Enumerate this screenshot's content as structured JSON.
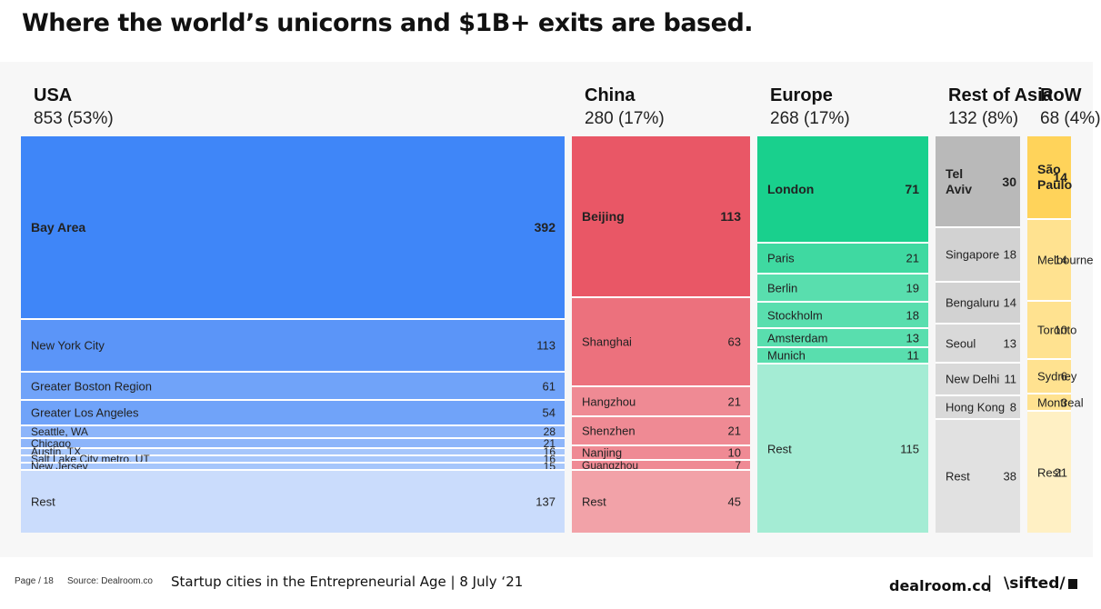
{
  "title": "Where the world’s unicorns and $1B+ exits are based.",
  "footer": {
    "page": "Page / 18",
    "source": "Source: Dealroom.co",
    "subtitle": "Startup cities in the Entrepreneurial Age | 8 July ‘21",
    "brand_left": "dealroom.co",
    "separator": "|",
    "brand_right": "\\sifted/",
    "brand_right_icon": "sifted-square-icon"
  },
  "chart_data": {
    "type": "treemap",
    "title": "Where the world’s unicorns and $1B+ exits are based.",
    "regions": [
      {
        "name": "USA",
        "total": "853 (53%)",
        "value": 853,
        "color": "#3f86f8",
        "cities": [
          {
            "label": "Bay Area",
            "value": 392,
            "color": "#3f86f8"
          },
          {
            "label": "New York City",
            "value": 113,
            "color": "#5b95f8"
          },
          {
            "label": "Greater Boston Region",
            "value": 61,
            "color": "#70a3f9"
          },
          {
            "label": "Greater Los Angeles",
            "value": 54,
            "color": "#70a3f9"
          },
          {
            "label": "Seattle, WA",
            "value": 28,
            "color": "#8db5fa"
          },
          {
            "label": "Chicago",
            "value": 21,
            "color": "#8db5fa"
          },
          {
            "label": "Austin, TX",
            "value": 16,
            "color": "#a6c6fb"
          },
          {
            "label": "Salt Lake City metro, UT",
            "value": 16,
            "color": "#a6c6fb"
          },
          {
            "label": "New Jersey",
            "value": 15,
            "color": "#a6c6fb"
          },
          {
            "label": "Rest",
            "value": 137,
            "color": "#cadcfc"
          }
        ]
      },
      {
        "name": "China",
        "total": "280 (17%)",
        "value": 280,
        "color": "#e95766",
        "cities": [
          {
            "label": "Beijing",
            "value": 113,
            "color": "#e95766"
          },
          {
            "label": "Shanghai",
            "value": 63,
            "color": "#ec717d"
          },
          {
            "label": "Hangzhou",
            "value": 21,
            "color": "#ef8a94"
          },
          {
            "label": "Shenzhen",
            "value": 21,
            "color": "#ef8a94"
          },
          {
            "label": "Nanjing",
            "value": 10,
            "color": "#ef8a94"
          },
          {
            "label": "Guangzhou",
            "value": 7,
            "color": "#ef8a94"
          },
          {
            "label": "Rest",
            "value": 45,
            "color": "#f2a2a8"
          }
        ]
      },
      {
        "name": "Europe",
        "total": "268 (17%)",
        "value": 268,
        "color": "#19d08d",
        "cities": [
          {
            "label": "London",
            "value": 71,
            "color": "#19d08d"
          },
          {
            "label": "Paris",
            "value": 21,
            "color": "#3fd9a1"
          },
          {
            "label": "Berlin",
            "value": 19,
            "color": "#59deae"
          },
          {
            "label": "Stockholm",
            "value": 18,
            "color": "#59deae"
          },
          {
            "label": "Amsterdam",
            "value": 13,
            "color": "#59deae"
          },
          {
            "label": "Munich",
            "value": 11,
            "color": "#59deae"
          },
          {
            "label": "Rest",
            "value": 115,
            "color": "#a4ecd4"
          }
        ]
      },
      {
        "name": "Rest of Asia",
        "total": "132 (8%)",
        "value": 132,
        "color": "#b9b9b9",
        "cities": [
          {
            "label": "Tel Aviv",
            "value": 30,
            "color": "#b9b9b9"
          },
          {
            "label": "Singapore",
            "value": 18,
            "color": "#d2d2d2"
          },
          {
            "label": "Bengaluru",
            "value": 14,
            "color": "#d2d2d2"
          },
          {
            "label": "Seoul",
            "value": 13,
            "color": "#d9d9d9"
          },
          {
            "label": "New Delhi",
            "value": 11,
            "color": "#d9d9d9"
          },
          {
            "label": "Hong Kong",
            "value": 8,
            "color": "#d9d9d9"
          },
          {
            "label": "Rest",
            "value": 38,
            "color": "#e1e1e1"
          }
        ]
      },
      {
        "name": "RoW",
        "total": "68 (4%)",
        "value": 68,
        "color": "#ffd35a",
        "cities": [
          {
            "label": "São Paulo",
            "value": 14,
            "color": "#ffd35a"
          },
          {
            "label": "Melbourne",
            "value": 14,
            "color": "#ffe290"
          },
          {
            "label": "Toronto",
            "value": 10,
            "color": "#ffe290"
          },
          {
            "label": "Sydney",
            "value": 6,
            "color": "#ffe290"
          },
          {
            "label": "Montreal",
            "value": 3,
            "color": "#ffe290"
          },
          {
            "label": "Rest",
            "value": 21,
            "color": "#fff0c4"
          }
        ]
      }
    ]
  }
}
